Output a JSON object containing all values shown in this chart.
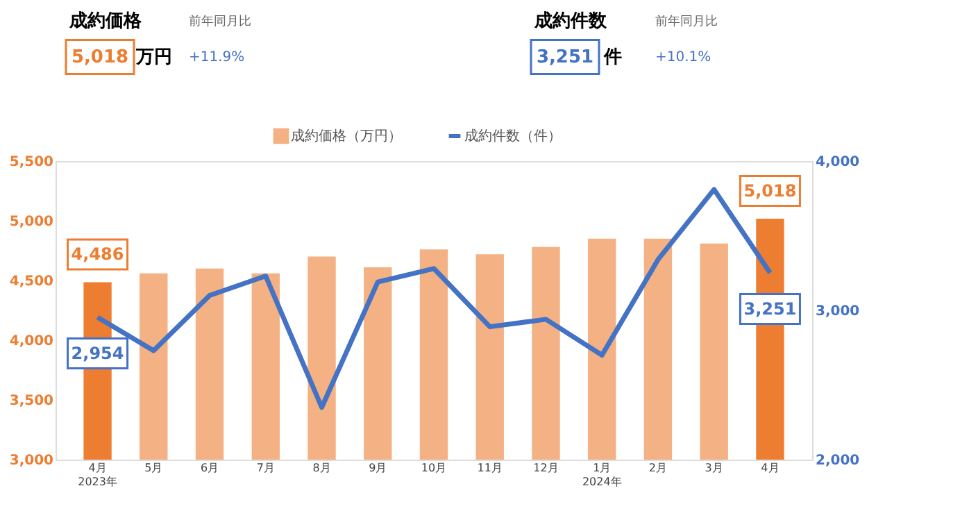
{
  "chart_data": {
    "type": "bar",
    "annotations": [
      "成約価格",
      "前年同月比",
      "5,018",
      "万円",
      "+11.9%",
      "成約件数",
      "前年同月比",
      "3,251",
      "件",
      "+10.1%"
    ],
    "categories": [
      "4月\n2023年",
      "5月",
      "6月",
      "7月",
      "8月",
      "9月",
      "10月",
      "11月",
      "12月",
      "1月\n2024年",
      "2月",
      "3月",
      "4月"
    ],
    "series": [
      {
        "name": "成約価格（万円）",
        "color": "#f4b183",
        "colors": [
          "#ed7d31",
          "#f4b183",
          "#f4b183",
          "#f4b183",
          "#f4b183",
          "#f4b183",
          "#f4b183",
          "#f4b183",
          "#f4b183",
          "#f4b183",
          "#f4b183",
          "#f4b183",
          "#ed7d31"
        ],
        "values": [
          4486,
          4560,
          4600,
          4560,
          4700,
          4610,
          4760,
          4720,
          4780,
          4850,
          4850,
          4810,
          5018
        ],
        "value_labels": [
          "4,486",
          null,
          null,
          null,
          null,
          null,
          null,
          null,
          null,
          null,
          null,
          null,
          "5,018"
        ]
      },
      {
        "name": "成約件数（件）",
        "type": "line",
        "axis": "y2",
        "color": "#4472c4",
        "values": [
          2954,
          2730,
          3100,
          3230,
          2350,
          3190,
          3280,
          2890,
          2940,
          2700,
          3340,
          3810,
          3251
        ],
        "value_labels": [
          "2,954",
          null,
          null,
          null,
          null,
          null,
          null,
          null,
          null,
          null,
          null,
          null,
          "3,251"
        ]
      }
    ],
    "ylim": [
      3000,
      5500
    ],
    "yticks": [
      {
        "value": 3000,
        "label": "3,000"
      },
      {
        "value": 3500,
        "label": "3,500"
      },
      {
        "value": 4000,
        "label": "4,000"
      },
      {
        "value": 4500,
        "label": "4,500"
      },
      {
        "value": 5000,
        "label": "5,000"
      },
      {
        "value": 5500,
        "label": "5,500"
      }
    ],
    "y2lim": [
      2000,
      4000
    ],
    "y2ticks": [
      {
        "value": 2000,
        "label": "2,000"
      },
      {
        "value": 3000,
        "label": "3,000"
      },
      {
        "value": 4000,
        "label": "4,000"
      }
    ],
    "grid": false,
    "legend": "top",
    "line_style": "solid",
    "marker": "none"
  }
}
